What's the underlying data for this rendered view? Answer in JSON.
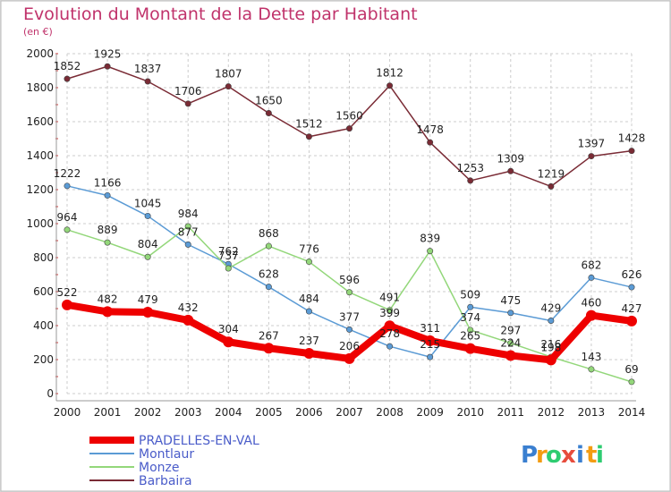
{
  "chart_data": {
    "type": "line",
    "title": "Evolution du Montant de la Dette par Habitant",
    "subtitle": "(en €)",
    "x": [
      "2000",
      "2001",
      "2002",
      "2003",
      "2004",
      "2005",
      "2006",
      "2007",
      "2008",
      "2009",
      "2010",
      "2011",
      "2012",
      "2013",
      "2014"
    ],
    "ylim": [
      0,
      2000
    ],
    "yticks": [
      0,
      200,
      400,
      600,
      800,
      1000,
      1200,
      1400,
      1600,
      1800,
      2000
    ],
    "grid": true,
    "legend_placement": "bottom-left",
    "series": [
      {
        "name": "Barbaira",
        "color": "#7a2b35",
        "width": 1.5,
        "values": [
          1852,
          1925,
          1837,
          1706,
          1807,
          1650,
          1512,
          1560,
          1812,
          1478,
          1253,
          1309,
          1219,
          1397,
          1428
        ]
      },
      {
        "name": "Montlaur",
        "color": "#5b9bd5",
        "width": 1.5,
        "values": [
          1222,
          1166,
          1045,
          877,
          762,
          628,
          484,
          377,
          278,
          215,
          509,
          475,
          429,
          682,
          626
        ]
      },
      {
        "name": "Monze",
        "color": "#93d77a",
        "width": 1.5,
        "values": [
          964,
          889,
          804,
          984,
          737,
          868,
          776,
          596,
          491,
          839,
          374,
          297,
          216,
          143,
          69
        ]
      },
      {
        "name": "PRADELLES-EN-VAL",
        "color": "#ee0000",
        "width": 8,
        "values": [
          522,
          482,
          479,
          432,
          304,
          267,
          237,
          206,
          399,
          311,
          265,
          224,
          198,
          460,
          427
        ]
      }
    ],
    "legend_order": [
      "PRADELLES-EN-VAL",
      "Montlaur",
      "Monze",
      "Barbaira"
    ]
  },
  "brand": {
    "letters": [
      "P",
      "r",
      "o",
      "x",
      "i",
      "t",
      "i"
    ],
    "colors": [
      "#3a7fd0",
      "#f39c12",
      "#2ecc71",
      "#e74c3c",
      "#3a7fd0",
      "#f39c12",
      "#2ecc71"
    ]
  }
}
